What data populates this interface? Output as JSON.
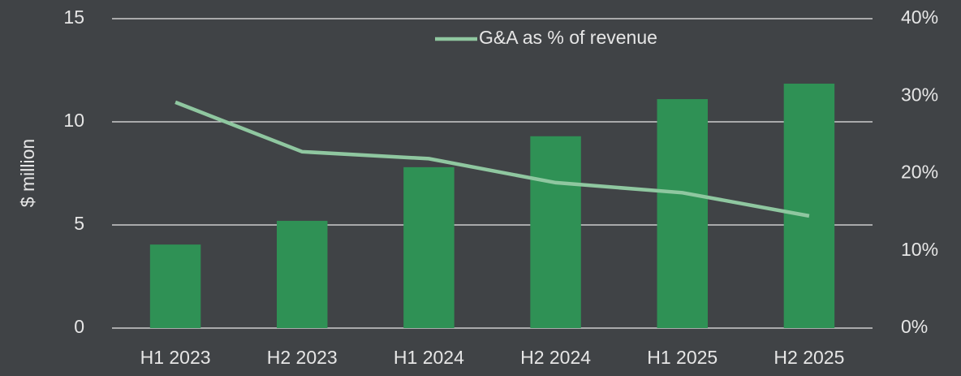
{
  "chart_data": {
    "type": "bar",
    "categories": [
      "H1 2023",
      "H2 2023",
      "H1 2024",
      "H2 2024",
      "H1 2025",
      "H2 2025"
    ],
    "ylabel": "$ million",
    "ylim": [
      0,
      15
    ],
    "yticks": [
      0,
      5,
      10,
      15
    ],
    "y2lim": [
      0,
      40
    ],
    "y2ticks": [
      {
        "value": 0,
        "label": "0%"
      },
      {
        "value": 10,
        "label": "10%"
      },
      {
        "value": 20,
        "label": "20%"
      },
      {
        "value": 30,
        "label": "30%"
      },
      {
        "value": 40,
        "label": "40%"
      }
    ],
    "grid": true,
    "legend": "top",
    "series": [
      {
        "type": "bar",
        "color": "#2f9155",
        "values": [
          4.05,
          5.2,
          7.8,
          9.3,
          11.1,
          11.85
        ]
      },
      {
        "type": "line",
        "name": "G&A as % of revenue",
        "color": "#8fc7a0",
        "axis": "y2",
        "values": [
          29.2,
          22.8,
          21.9,
          18.8,
          17.5,
          14.5
        ]
      }
    ]
  }
}
